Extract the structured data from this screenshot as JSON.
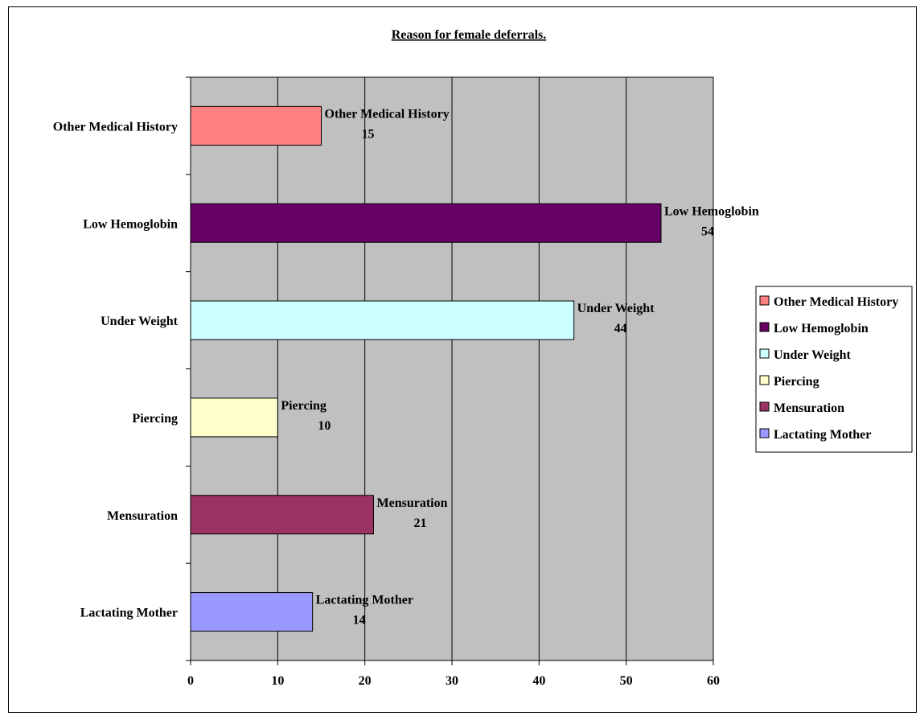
{
  "chart_data": {
    "type": "bar",
    "orientation": "horizontal",
    "title": "Reason for female deferrals.",
    "xlabel": "",
    "ylabel": "",
    "xlim": [
      0,
      60
    ],
    "xticks": [
      "0",
      "10",
      "20",
      "30",
      "40",
      "50",
      "60"
    ],
    "grid": true,
    "legend_position": "right",
    "categories": [
      "Other Medical History",
      "Low Hemoglobin",
      "Under Weight",
      "Piercing",
      "Mensuration",
      "Lactating Mother"
    ],
    "values": [
      15,
      54,
      44,
      10,
      21,
      14
    ],
    "colors": [
      "#ff8080",
      "#660066",
      "#ccffff",
      "#ffffcc",
      "#993366",
      "#9999ff"
    ],
    "plot_background": "#c0c0c0"
  }
}
